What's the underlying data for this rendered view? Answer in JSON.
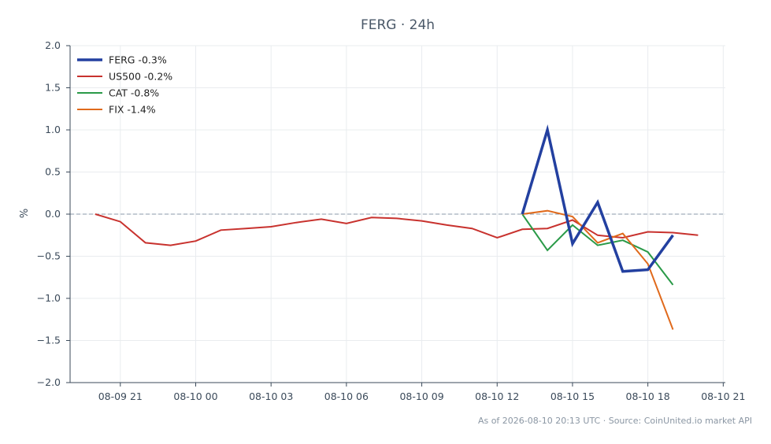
{
  "chart_data": {
    "type": "line",
    "title": "FERG · 24h",
    "xlabel": "",
    "ylabel": "%",
    "ylim": [
      -2.0,
      2.0
    ],
    "yticks": [
      2.0,
      1.5,
      1.0,
      0.5,
      0.0,
      -0.5,
      -1.0,
      -1.5,
      -2.0
    ],
    "ytick_labels": [
      "2.0",
      "1.5",
      "1.0",
      "0.5",
      "0.0",
      "−0.5",
      "−1.0",
      "−1.5",
      "−2.0"
    ],
    "x_unit": "hour",
    "xlim": [
      "2026-08-09 19:00",
      "2026-08-10 21:05"
    ],
    "xticks": [
      "2026-08-09 21:00",
      "2026-08-10 00:00",
      "2026-08-10 03:00",
      "2026-08-10 06:00",
      "2026-08-10 09:00",
      "2026-08-10 12:00",
      "2026-08-10 15:00",
      "2026-08-10 18:00",
      "2026-08-10 21:00"
    ],
    "xtick_labels": [
      "08-09 21",
      "08-10 00",
      "08-10 03",
      "08-10 06",
      "08-10 09",
      "08-10 12",
      "08-10 15",
      "08-10 18",
      "08-10 21"
    ],
    "grid": true,
    "zero_line": true,
    "legend_position": "top-left",
    "series": [
      {
        "name": "FERG -0.3%",
        "color": "#2340a0",
        "bold": true,
        "x": [
          "2026-08-10 13:00",
          "2026-08-10 14:00",
          "2026-08-10 15:00",
          "2026-08-10 16:00",
          "2026-08-10 17:00",
          "2026-08-10 18:00",
          "2026-08-10 19:00"
        ],
        "values": [
          0.0,
          1.0,
          -0.35,
          0.14,
          -0.68,
          -0.66,
          -0.25
        ]
      },
      {
        "name": "US500 -0.2%",
        "color": "#c8322e",
        "bold": false,
        "x": [
          "2026-08-09 20:00",
          "2026-08-09 21:00",
          "2026-08-09 22:00",
          "2026-08-09 23:00",
          "2026-08-10 00:00",
          "2026-08-10 01:00",
          "2026-08-10 02:00",
          "2026-08-10 03:00",
          "2026-08-10 04:00",
          "2026-08-10 05:00",
          "2026-08-10 06:00",
          "2026-08-10 07:00",
          "2026-08-10 08:00",
          "2026-08-10 09:00",
          "2026-08-10 10:00",
          "2026-08-10 11:00",
          "2026-08-10 12:00",
          "2026-08-10 13:00",
          "2026-08-10 14:00",
          "2026-08-10 15:00",
          "2026-08-10 16:00",
          "2026-08-10 17:00",
          "2026-08-10 18:00",
          "2026-08-10 19:00",
          "2026-08-10 20:00"
        ],
        "values": [
          0.0,
          -0.09,
          -0.34,
          -0.37,
          -0.32,
          -0.19,
          -0.17,
          -0.15,
          -0.1,
          -0.06,
          -0.11,
          -0.04,
          -0.05,
          -0.08,
          -0.13,
          -0.17,
          -0.28,
          -0.18,
          -0.17,
          -0.07,
          -0.25,
          -0.28,
          -0.21,
          -0.22,
          -0.25
        ]
      },
      {
        "name": "CAT -0.8%",
        "color": "#2a9a48",
        "bold": false,
        "x": [
          "2026-08-10 13:00",
          "2026-08-10 14:00",
          "2026-08-10 15:00",
          "2026-08-10 16:00",
          "2026-08-10 17:00",
          "2026-08-10 18:00",
          "2026-08-10 19:00"
        ],
        "values": [
          0.0,
          -0.43,
          -0.13,
          -0.37,
          -0.31,
          -0.45,
          -0.84
        ]
      },
      {
        "name": "FIX -1.4%",
        "color": "#e06a1c",
        "bold": false,
        "x": [
          "2026-08-10 13:00",
          "2026-08-10 14:00",
          "2026-08-10 15:00",
          "2026-08-10 16:00",
          "2026-08-10 17:00",
          "2026-08-10 18:00",
          "2026-08-10 19:00"
        ],
        "values": [
          0.0,
          0.04,
          -0.03,
          -0.34,
          -0.23,
          -0.59,
          -1.37
        ]
      }
    ]
  },
  "footer": "As of 2026-08-10 20:13 UTC · Source: CoinUnited.io market API"
}
